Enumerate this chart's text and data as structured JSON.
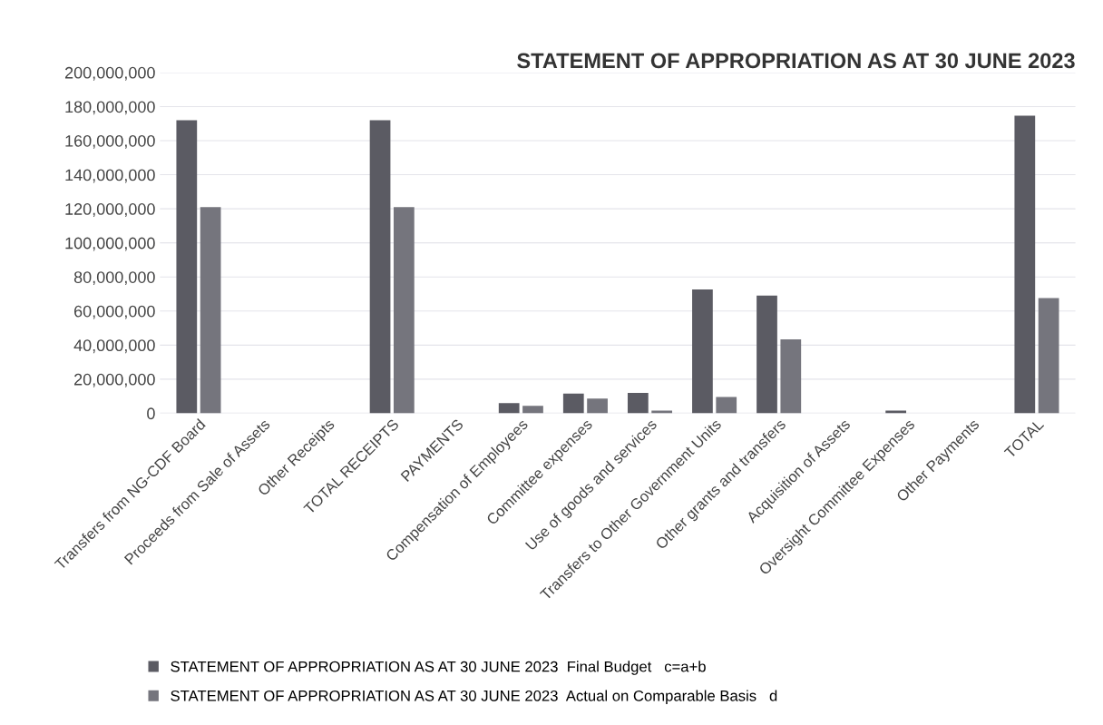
{
  "chart_data": {
    "type": "bar",
    "title": "STATEMENT OF APPROPRIATION AS AT 30 JUNE 2023",
    "categories": [
      "Transfers from NG-CDF Board",
      "Proceeds from Sale of Assets",
      "Other Receipts",
      "TOTAL RECEIPTS",
      "PAYMENTS",
      "Compensation of Employees",
      "Committee expenses",
      "Use of goods and services",
      "Transfers to Other Government Units",
      "Other grants and transfers",
      "Acquisition of Assets",
      "Oversight Committee Expenses",
      "Other Payments",
      "TOTAL"
    ],
    "series": [
      {
        "name": "STATEMENT OF APPROPRIATION AS AT 30 JUNE 2023  Final Budget   c=a+b",
        "color": "#5b5b63",
        "values": [
          172000000,
          0,
          0,
          172000000,
          0,
          6000000,
          11500000,
          12000000,
          72700000,
          69000000,
          0,
          1500000,
          0,
          174700000
        ]
      },
      {
        "name": "STATEMENT OF APPROPRIATION AS AT 30 JUNE 2023  Actual on Comparable Basis   d",
        "color": "#75757d",
        "values": [
          121000000,
          0,
          0,
          121000000,
          0,
          4400000,
          8600000,
          1500000,
          9500000,
          43400000,
          0,
          0,
          0,
          67600000
        ]
      }
    ],
    "ylim": [
      0,
      200000000
    ],
    "yticks": [
      {
        "value": 0,
        "label": "0"
      },
      {
        "value": 20000000,
        "label": "20,000,000"
      },
      {
        "value": 40000000,
        "label": "40,000,000"
      },
      {
        "value": 60000000,
        "label": "60,000,000"
      },
      {
        "value": 80000000,
        "label": "80,000,000"
      },
      {
        "value": 100000000,
        "label": "100,000,000"
      },
      {
        "value": 120000000,
        "label": "120,000,000"
      },
      {
        "value": 140000000,
        "label": "140,000,000"
      },
      {
        "value": 160000000,
        "label": "160,000,000"
      },
      {
        "value": 180000000,
        "label": "180,000,000"
      },
      {
        "value": 200000000,
        "label": "200,000,000"
      }
    ],
    "grid": "y",
    "legend": "bottom"
  }
}
